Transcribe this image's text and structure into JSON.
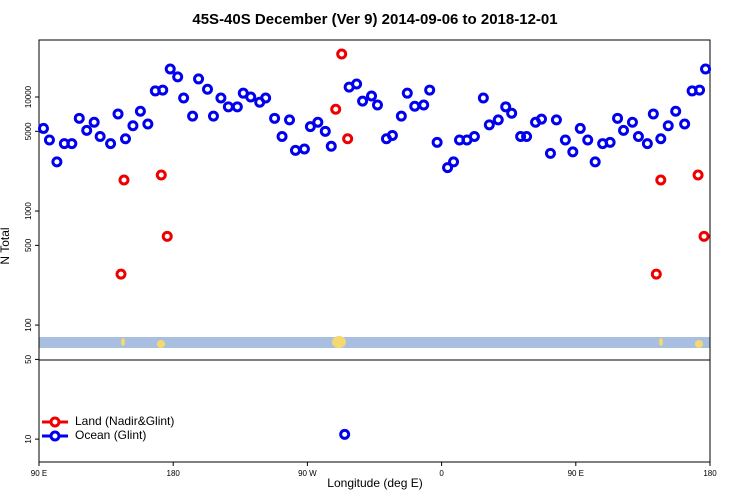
{
  "chart_data": {
    "type": "scatter",
    "title": "45S-40S December (Ver 9)   2014-09-06 to 2018-12-01",
    "xlabel": "Longitude (deg E)",
    "ylabel": "N Total",
    "xlim": [
      90,
      540
    ],
    "xticks": [
      {
        "value": 90,
        "label": "90 E"
      },
      180,
      {
        "value": 270,
        "label": "90 W"
      },
      {
        "value": 360,
        "label": "0"
      },
      {
        "value": 450,
        "label": "90 E"
      },
      {
        "value": 540,
        "label": "180"
      }
    ],
    "ylim": [
      6.3,
      31600
    ],
    "log_y": true,
    "yticks": [
      10,
      50,
      100,
      500,
      1000,
      5000,
      10000
    ],
    "legend": "lower left",
    "series": [
      {
        "name": "Land (Nadir&Glint)",
        "color": "#ee0000",
        "x": [
          145,
          147,
          172,
          176,
          289,
          293,
          297,
          504,
          507,
          532,
          536
        ],
        "values": [
          280,
          1870,
          2070,
          600,
          7800,
          23800,
          4300,
          280,
          1870,
          2070,
          600
        ]
      },
      {
        "name": "Ocean (Glint)",
        "color": "#0000ee",
        "x": [
          93,
          97,
          102,
          107,
          112,
          117,
          122,
          127,
          131,
          138,
          143,
          148,
          153,
          158,
          163,
          168,
          173,
          178,
          183,
          187,
          193,
          197,
          203,
          207,
          212,
          217,
          223,
          227,
          232,
          238,
          242,
          248,
          253,
          258,
          262,
          268,
          272,
          277,
          282,
          286,
          298,
          303,
          307,
          313,
          317,
          323,
          327,
          333,
          337,
          342,
          348,
          352,
          357,
          364,
          368,
          372,
          377,
          382,
          388,
          392,
          398,
          403,
          407,
          413,
          417,
          423,
          427,
          433,
          437,
          443,
          448,
          453,
          458,
          463,
          468,
          473,
          478,
          482,
          488,
          492,
          498,
          502,
          507,
          512,
          517,
          523,
          528,
          533,
          537,
          295
        ],
        "values": [
          5300,
          4200,
          2700,
          3900,
          3900,
          6500,
          5100,
          6000,
          4500,
          3900,
          7100,
          4300,
          5600,
          7500,
          5800,
          11300,
          11500,
          17600,
          15000,
          9800,
          6800,
          14400,
          11700,
          6800,
          9800,
          8200,
          8200,
          10800,
          10000,
          9000,
          9800,
          6500,
          4500,
          6300,
          3400,
          3500,
          5500,
          6000,
          5000,
          3700,
          12200,
          13000,
          9200,
          10200,
          8500,
          4300,
          4600,
          6800,
          10800,
          8300,
          8500,
          11500,
          4000,
          2400,
          2700,
          4200,
          4200,
          4500,
          9800,
          5700,
          6300,
          8200,
          7200,
          4500,
          4500,
          6000,
          6400,
          3200,
          6300,
          4200,
          3300,
          5300,
          4200,
          2700,
          3900,
          4000,
          6500,
          5100,
          6000,
          4500,
          3900,
          7100,
          4300,
          5600,
          7500,
          5800,
          11300,
          11500,
          17600,
          11
        ]
      }
    ]
  }
}
